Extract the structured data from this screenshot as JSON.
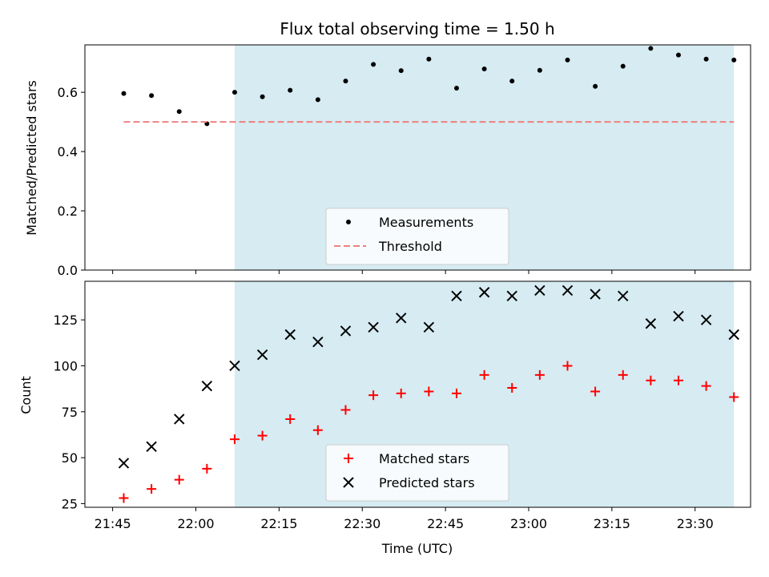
{
  "chart_data": [
    {
      "type": "scatter",
      "title": "Flux total observing time = 1.50 h",
      "xlabel": "",
      "ylabel": "Matched/Predicted stars",
      "xlim": [
        "21:40",
        "23:40"
      ],
      "ylim": [
        0,
        0.76
      ],
      "yticks": [
        "0.0",
        "0.2",
        "0.4",
        "0.6"
      ],
      "ytick_values": [
        0,
        0.2,
        0.4,
        0.6
      ],
      "shaded_span": [
        "22:07",
        "23:37"
      ],
      "shade_color": "#add8e6",
      "series": [
        {
          "name": "Measurements",
          "marker": "dot",
          "color": "#000000",
          "x": [
            "21:47",
            "21:52",
            "21:57",
            "22:02",
            "22:07",
            "22:12",
            "22:17",
            "22:22",
            "22:27",
            "22:32",
            "22:37",
            "22:42",
            "22:47",
            "22:52",
            "22:57",
            "23:02",
            "23:07",
            "23:12",
            "23:17",
            "23:22",
            "23:27",
            "23:32",
            "23:37"
          ],
          "values": [
            0.596,
            0.589,
            0.535,
            0.494,
            0.6,
            0.585,
            0.607,
            0.575,
            0.638,
            0.694,
            0.673,
            0.712,
            0.614,
            0.679,
            0.638,
            0.674,
            0.709,
            0.62,
            0.688,
            0.748,
            0.726,
            0.712,
            0.709
          ]
        },
        {
          "name": "Threshold",
          "marker": "dashed-line",
          "color": "#f08080",
          "x": [
            "21:47",
            "23:37"
          ],
          "values": [
            0.5,
            0.5
          ]
        }
      ],
      "legend": "bottom-center"
    },
    {
      "type": "scatter",
      "title": "",
      "xlabel": "Time (UTC)",
      "ylabel": "Count",
      "xlim": [
        "21:40",
        "23:40"
      ],
      "ylim": [
        23,
        146
      ],
      "yticks": [
        "25",
        "50",
        "75",
        "100",
        "125"
      ],
      "ytick_values": [
        25,
        50,
        75,
        100,
        125
      ],
      "xticks": [
        "21:45",
        "22:00",
        "22:15",
        "22:30",
        "22:45",
        "23:00",
        "23:15",
        "23:30"
      ],
      "shaded_span": [
        "22:07",
        "23:37"
      ],
      "shade_color": "#add8e6",
      "series": [
        {
          "name": "Matched stars",
          "marker": "plus",
          "color": "#ff0000",
          "x": [
            "21:47",
            "21:52",
            "21:57",
            "22:02",
            "22:07",
            "22:12",
            "22:17",
            "22:22",
            "22:27",
            "22:32",
            "22:37",
            "22:42",
            "22:47",
            "22:52",
            "22:57",
            "23:02",
            "23:07",
            "23:12",
            "23:17",
            "23:22",
            "23:27",
            "23:32",
            "23:37"
          ],
          "values": [
            28,
            33,
            38,
            44,
            60,
            62,
            71,
            65,
            76,
            84,
            85,
            86,
            85,
            95,
            88,
            95,
            100,
            86,
            95,
            92,
            92,
            89,
            83
          ]
        },
        {
          "name": "Predicted stars",
          "marker": "x",
          "color": "#000000",
          "x": [
            "21:47",
            "21:52",
            "21:57",
            "22:02",
            "22:07",
            "22:12",
            "22:17",
            "22:22",
            "22:27",
            "22:32",
            "22:37",
            "22:42",
            "22:47",
            "22:52",
            "22:57",
            "23:02",
            "23:07",
            "23:12",
            "23:17",
            "23:22",
            "23:27",
            "23:32",
            "23:37"
          ],
          "values": [
            47,
            56,
            71,
            89,
            100,
            106,
            117,
            113,
            119,
            121,
            126,
            121,
            138,
            140,
            138,
            141,
            141,
            139,
            138,
            123,
            127,
            125,
            117
          ]
        }
      ],
      "legend": "bottom-center"
    }
  ]
}
